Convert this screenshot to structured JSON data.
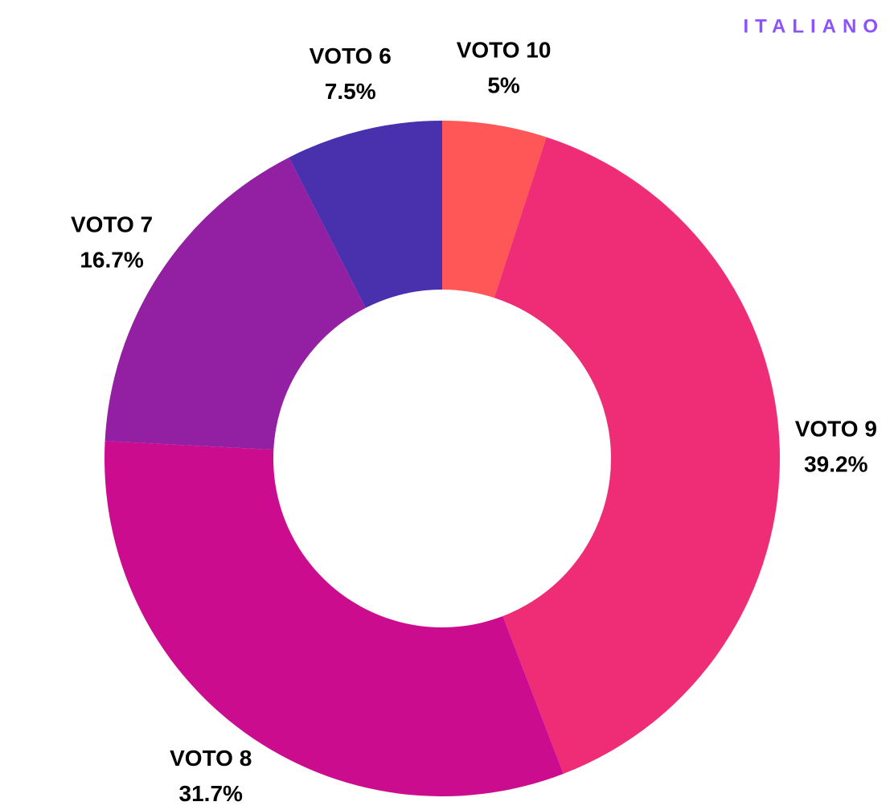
{
  "chart_data": {
    "type": "donut",
    "title": "ITALIANO",
    "categories": [
      "VOTO 10",
      "VOTO 9",
      "VOTO 8",
      "VOTO 7",
      "VOTO 6"
    ],
    "values": [
      5,
      39.2,
      31.7,
      16.7,
      7.5
    ],
    "value_labels": [
      "5%",
      "39.2%",
      "31.7%",
      "16.7%",
      "7.5%"
    ],
    "colors": [
      "#ff5757",
      "#ef2d76",
      "#cc0c8f",
      "#931fa3",
      "#4930ad"
    ]
  }
}
